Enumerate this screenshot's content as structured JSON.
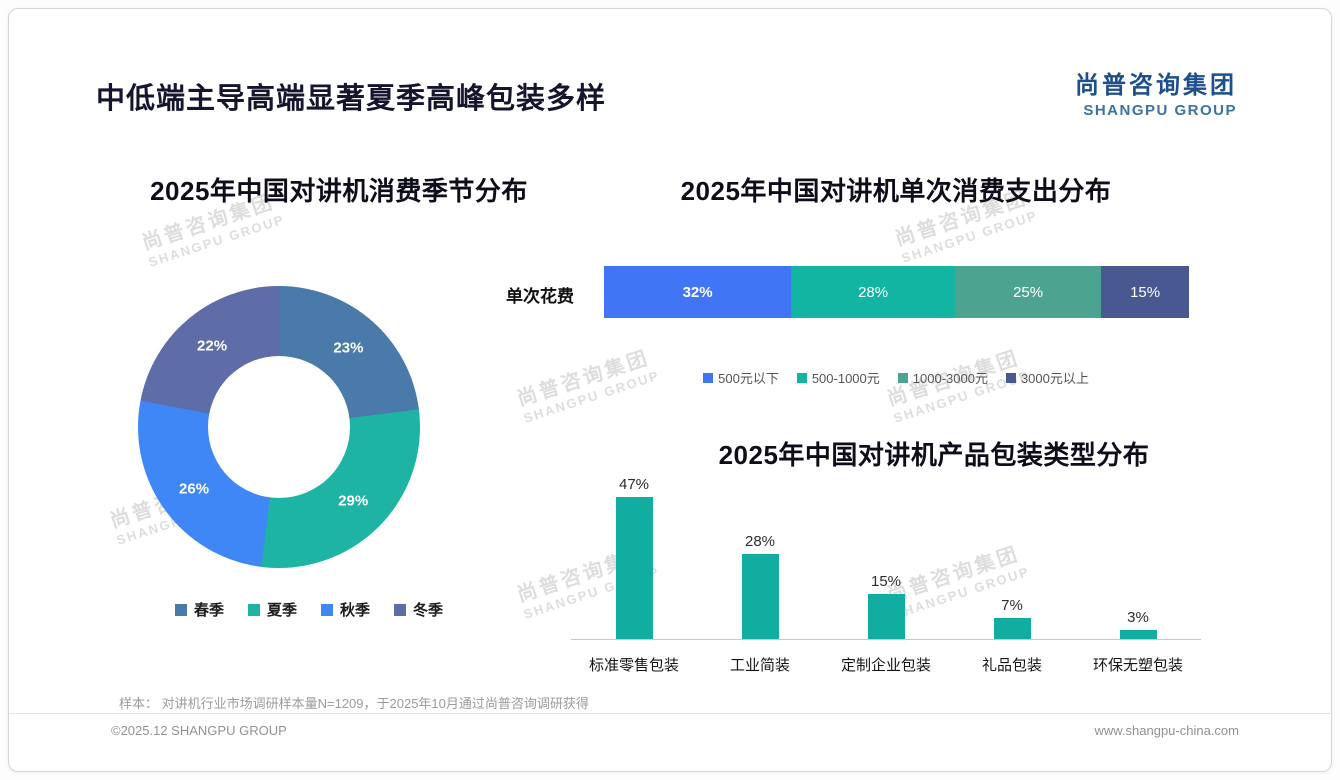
{
  "slide": {
    "title": "中低端主导高端显著夏季高峰包装多样",
    "logo": {
      "cn": "尚普咨询集团",
      "en": "SHANGPU GROUP"
    },
    "watermark": {
      "cn": "尚普咨询集团",
      "en": "SHANGPU GROUP"
    },
    "footnote": "样本： 对讲机行业市场调研样本量N=1209，于2025年10月通过尚普咨询调研获得",
    "footer": {
      "left": "©2025.12 SHANGPU GROUP",
      "right": "www.shangpu-china.com"
    }
  },
  "chart_data": [
    {
      "type": "pie",
      "subtype": "donut",
      "title": "2025年中国对讲机消费季节分布",
      "categories": [
        "春季",
        "夏季",
        "秋季",
        "冬季"
      ],
      "values": [
        23,
        29,
        26,
        22
      ],
      "unit": "%",
      "colors": [
        "#4a7aa9",
        "#1db4a3",
        "#3f87f7",
        "#5e6ca8"
      ],
      "legend_position": "bottom",
      "labels_inside": true
    },
    {
      "type": "bar",
      "subtype": "stacked-horizontal",
      "title": "2025年中国对讲机单次消费支出分布",
      "row_label": "单次花费",
      "categories": [
        "500元以下",
        "500-1000元",
        "1000-3000元",
        "3000元以上"
      ],
      "values": [
        32,
        28,
        25,
        15
      ],
      "unit": "%",
      "colors": [
        "#4076f5",
        "#12b5a2",
        "#4ba390",
        "#4a5891"
      ],
      "legend_position": "bottom"
    },
    {
      "type": "bar",
      "subtype": "vertical",
      "title": "2025年中国对讲机产品包装类型分布",
      "categories": [
        "标准零售包装",
        "工业简装",
        "定制企业包装",
        "礼品包装",
        "环保无塑包装"
      ],
      "values": [
        47,
        28,
        15,
        7,
        3
      ],
      "unit": "%",
      "bar_color": "#12ada1",
      "ylim": [
        0,
        50
      ],
      "grid": false,
      "value_labels": true
    }
  ]
}
